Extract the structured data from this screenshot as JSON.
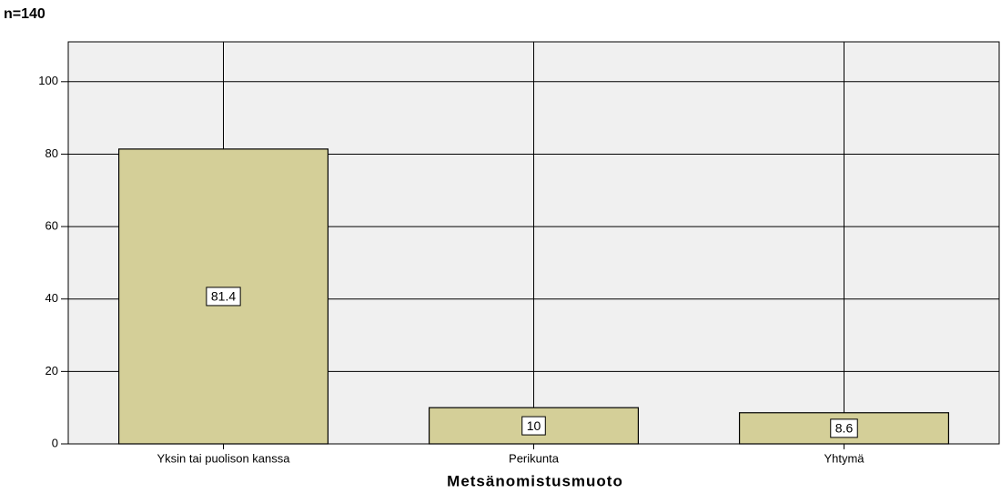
{
  "chart_data": {
    "type": "bar",
    "title": "n=140",
    "xlabel": "Metsänomistusmuoto",
    "categories": [
      "Yksin tai puolison kanssa",
      "Perikunta",
      "Yhtymä"
    ],
    "values": [
      81.4,
      10,
      8.6
    ],
    "color": "#d4cf98",
    "ylim": [
      0,
      111
    ],
    "yticks": [
      0,
      20,
      40,
      60,
      80,
      100
    ],
    "grid": true
  }
}
